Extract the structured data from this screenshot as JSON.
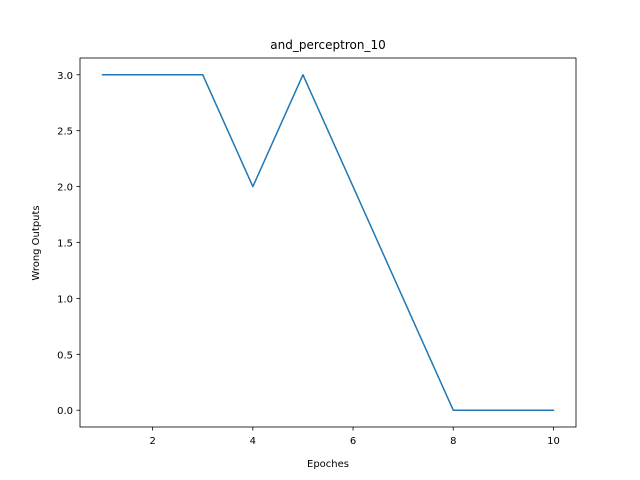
{
  "chart_data": {
    "type": "line",
    "title": "and_perceptron_10",
    "xlabel": "Epoches",
    "ylabel": "Wrong Outputs",
    "xlim": [
      0.55,
      10.45
    ],
    "ylim": [
      -0.15,
      3.15
    ],
    "xticks": [
      2,
      4,
      6,
      8,
      10
    ],
    "yticks": [
      0.0,
      0.5,
      1.0,
      1.5,
      2.0,
      2.5,
      3.0
    ],
    "grid": false,
    "series": [
      {
        "color": "#1f77b4",
        "x": [
          1,
          2,
          3,
          4,
          5,
          6,
          7,
          8,
          9,
          10
        ],
        "y": [
          3,
          3,
          3,
          2,
          3,
          2,
          1,
          0,
          0,
          0
        ]
      }
    ]
  }
}
